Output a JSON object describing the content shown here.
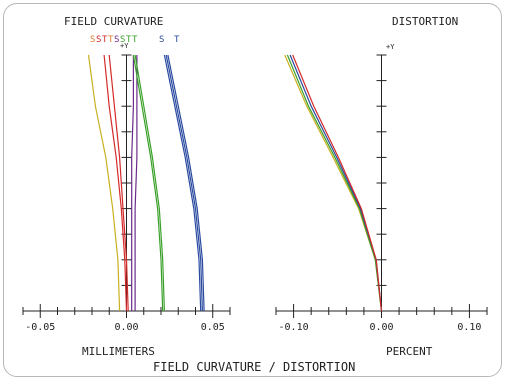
{
  "chart_data": [
    {
      "type": "line",
      "title": "FIELD CURVATURE",
      "xlabel": "MILLIMETERS",
      "xlim": [
        -0.06,
        0.06
      ],
      "ylim": [
        0,
        1
      ],
      "x_ticks": [
        -0.05,
        0.0,
        0.05
      ],
      "x_tick_labels": [
        "-0.05",
        "0.00",
        "0.05"
      ],
      "y_axis_label": "+Y",
      "legend": [
        {
          "label": "S",
          "color": "#e07a2a"
        },
        {
          "label": "S",
          "color": "#d42a2a"
        },
        {
          "label": "T",
          "color": "#d42a2a"
        },
        {
          "label": "T",
          "color": "#e07a2a"
        },
        {
          "label": "S",
          "color": "#6a2a8a"
        },
        {
          "label": "S",
          "color": "#3aa02a"
        },
        {
          "label": "T",
          "color": "#3aa02a"
        },
        {
          "label": "T",
          "color": "#3aa02a"
        },
        {
          "label": "S",
          "color": "#2a4aa0"
        },
        {
          "label": "T",
          "color": "#2a4aa0"
        }
      ],
      "series": [
        {
          "color": "#c8b020",
          "points": [
            [
              -0.004,
              0
            ],
            [
              -0.005,
              0.2
            ],
            [
              -0.008,
              0.4
            ],
            [
              -0.012,
              0.6
            ],
            [
              -0.018,
              0.8
            ],
            [
              -0.022,
              1.0
            ]
          ]
        },
        {
          "color": "#d42a2a",
          "points": [
            [
              0.0,
              0
            ],
            [
              -0.001,
              0.2
            ],
            [
              -0.003,
              0.4
            ],
            [
              -0.006,
              0.6
            ],
            [
              -0.01,
              0.8
            ],
            [
              -0.013,
              1.0
            ]
          ]
        },
        {
          "color": "#d42a2a",
          "points": [
            [
              0.001,
              0
            ],
            [
              0.0,
              0.2
            ],
            [
              -0.002,
              0.4
            ],
            [
              -0.004,
              0.6
            ],
            [
              -0.007,
              0.8
            ],
            [
              -0.01,
              1.0
            ]
          ]
        },
        {
          "color": "#6a2a8a",
          "points": [
            [
              0.003,
              0
            ],
            [
              0.003,
              0.2
            ],
            [
              0.003,
              0.4
            ],
            [
              0.003,
              0.6
            ],
            [
              0.004,
              0.8
            ],
            [
              0.004,
              1.0
            ]
          ]
        },
        {
          "color": "#6a2a8a",
          "points": [
            [
              0.005,
              0
            ],
            [
              0.005,
              0.2
            ],
            [
              0.005,
              0.4
            ],
            [
              0.006,
              0.6
            ],
            [
              0.006,
              0.8
            ],
            [
              0.006,
              1.0
            ]
          ]
        },
        {
          "color": "#3aa02a",
          "points": [
            [
              0.021,
              0
            ],
            [
              0.02,
              0.2
            ],
            [
              0.018,
              0.4
            ],
            [
              0.014,
              0.6
            ],
            [
              0.009,
              0.8
            ],
            [
              0.004,
              1.0
            ]
          ]
        },
        {
          "color": "#3aa02a",
          "points": [
            [
              0.022,
              0
            ],
            [
              0.021,
              0.2
            ],
            [
              0.019,
              0.4
            ],
            [
              0.015,
              0.6
            ],
            [
              0.01,
              0.8
            ],
            [
              0.005,
              1.0
            ]
          ]
        },
        {
          "color": "#2a4aa0",
          "points": [
            [
              0.043,
              0
            ],
            [
              0.042,
              0.2
            ],
            [
              0.039,
              0.4
            ],
            [
              0.034,
              0.6
            ],
            [
              0.028,
              0.8
            ],
            [
              0.022,
              1.0
            ]
          ]
        },
        {
          "color": "#2a4aa0",
          "points": [
            [
              0.044,
              0
            ],
            [
              0.043,
              0.2
            ],
            [
              0.04,
              0.4
            ],
            [
              0.035,
              0.6
            ],
            [
              0.029,
              0.8
            ],
            [
              0.023,
              1.0
            ]
          ]
        },
        {
          "color": "#2a4aa0",
          "points": [
            [
              0.045,
              0
            ],
            [
              0.044,
              0.2
            ],
            [
              0.041,
              0.4
            ],
            [
              0.036,
              0.6
            ],
            [
              0.03,
              0.8
            ],
            [
              0.024,
              1.0
            ]
          ]
        }
      ]
    },
    {
      "type": "line",
      "title": "DISTORTION",
      "xlabel": "PERCENT",
      "xlim": [
        -0.12,
        0.12
      ],
      "ylim": [
        0,
        1
      ],
      "x_ticks": [
        -0.1,
        0.0,
        0.1
      ],
      "x_tick_labels": [
        "-0.10",
        "0.00",
        "0.10"
      ],
      "y_axis_label": "+Y",
      "series": [
        {
          "color": "#c8b020",
          "points": [
            [
              0,
              0
            ],
            [
              -0.007,
              0.2
            ],
            [
              -0.026,
              0.4
            ],
            [
              -0.055,
              0.6
            ],
            [
              -0.085,
              0.8
            ],
            [
              -0.11,
              1.0
            ]
          ]
        },
        {
          "color": "#3aa02a",
          "points": [
            [
              0,
              0
            ],
            [
              -0.007,
              0.2
            ],
            [
              -0.025,
              0.4
            ],
            [
              -0.053,
              0.6
            ],
            [
              -0.083,
              0.8
            ],
            [
              -0.107,
              1.0
            ]
          ]
        },
        {
          "color": "#2a4aa0",
          "points": [
            [
              0,
              0
            ],
            [
              -0.006,
              0.2
            ],
            [
              -0.024,
              0.4
            ],
            [
              -0.051,
              0.6
            ],
            [
              -0.08,
              0.8
            ],
            [
              -0.104,
              1.0
            ]
          ]
        },
        {
          "color": "#d42a2a",
          "points": [
            [
              0,
              0
            ],
            [
              -0.006,
              0.2
            ],
            [
              -0.023,
              0.4
            ],
            [
              -0.049,
              0.6
            ],
            [
              -0.077,
              0.8
            ],
            [
              -0.101,
              1.0
            ]
          ]
        }
      ]
    }
  ],
  "footer": {
    "title": "FIELD CURVATURE / DISTORTION"
  }
}
